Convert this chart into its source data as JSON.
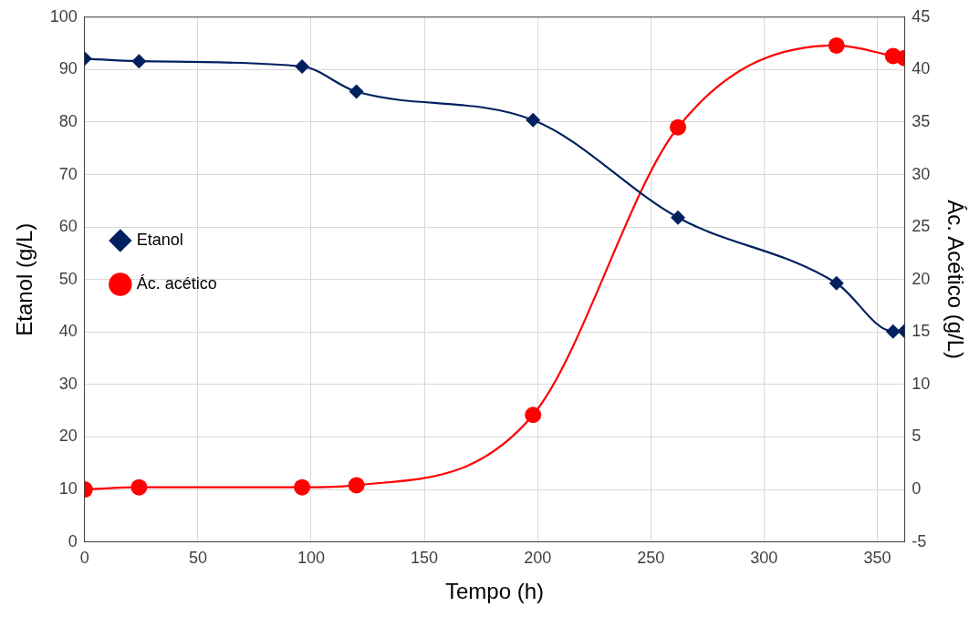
{
  "chart_data": {
    "type": "line",
    "xlabel": "Tempo (h)",
    "ylabel": "Etanol (g/L)",
    "y2label": "Ác. Acético (g/L)",
    "xlim": [
      0,
      362
    ],
    "xticks": [
      0,
      50,
      100,
      150,
      200,
      250,
      300,
      350
    ],
    "ylim": [
      0,
      100
    ],
    "yticks": [
      0,
      10,
      20,
      30,
      40,
      50,
      60,
      70,
      80,
      90,
      100
    ],
    "y2lim": [
      -5,
      45
    ],
    "y2ticks": [
      -5,
      0,
      5,
      10,
      15,
      20,
      25,
      30,
      35,
      40,
      45
    ],
    "grid": true,
    "legend": "left",
    "line_style": "solid",
    "series": [
      {
        "name": "Etanol",
        "color": "#002060",
        "marker": "diamond",
        "x": [
          0,
          24,
          96,
          120,
          198,
          262,
          332,
          357,
          362
        ],
        "values": [
          92.1,
          91.6,
          90.6,
          85.8,
          80.4,
          61.8,
          49.3,
          40.1,
          40.2
        ]
      },
      {
        "name": "Ác. acético",
        "color": "#ff0000",
        "marker": "circle",
        "axis": "y2",
        "x": [
          0,
          24,
          96,
          120,
          198,
          262,
          332,
          357,
          362
        ],
        "values": [
          0,
          0.2,
          0.2,
          0.4,
          7.1,
          34.5,
          42.3,
          41.3,
          41.1
        ]
      }
    ]
  }
}
